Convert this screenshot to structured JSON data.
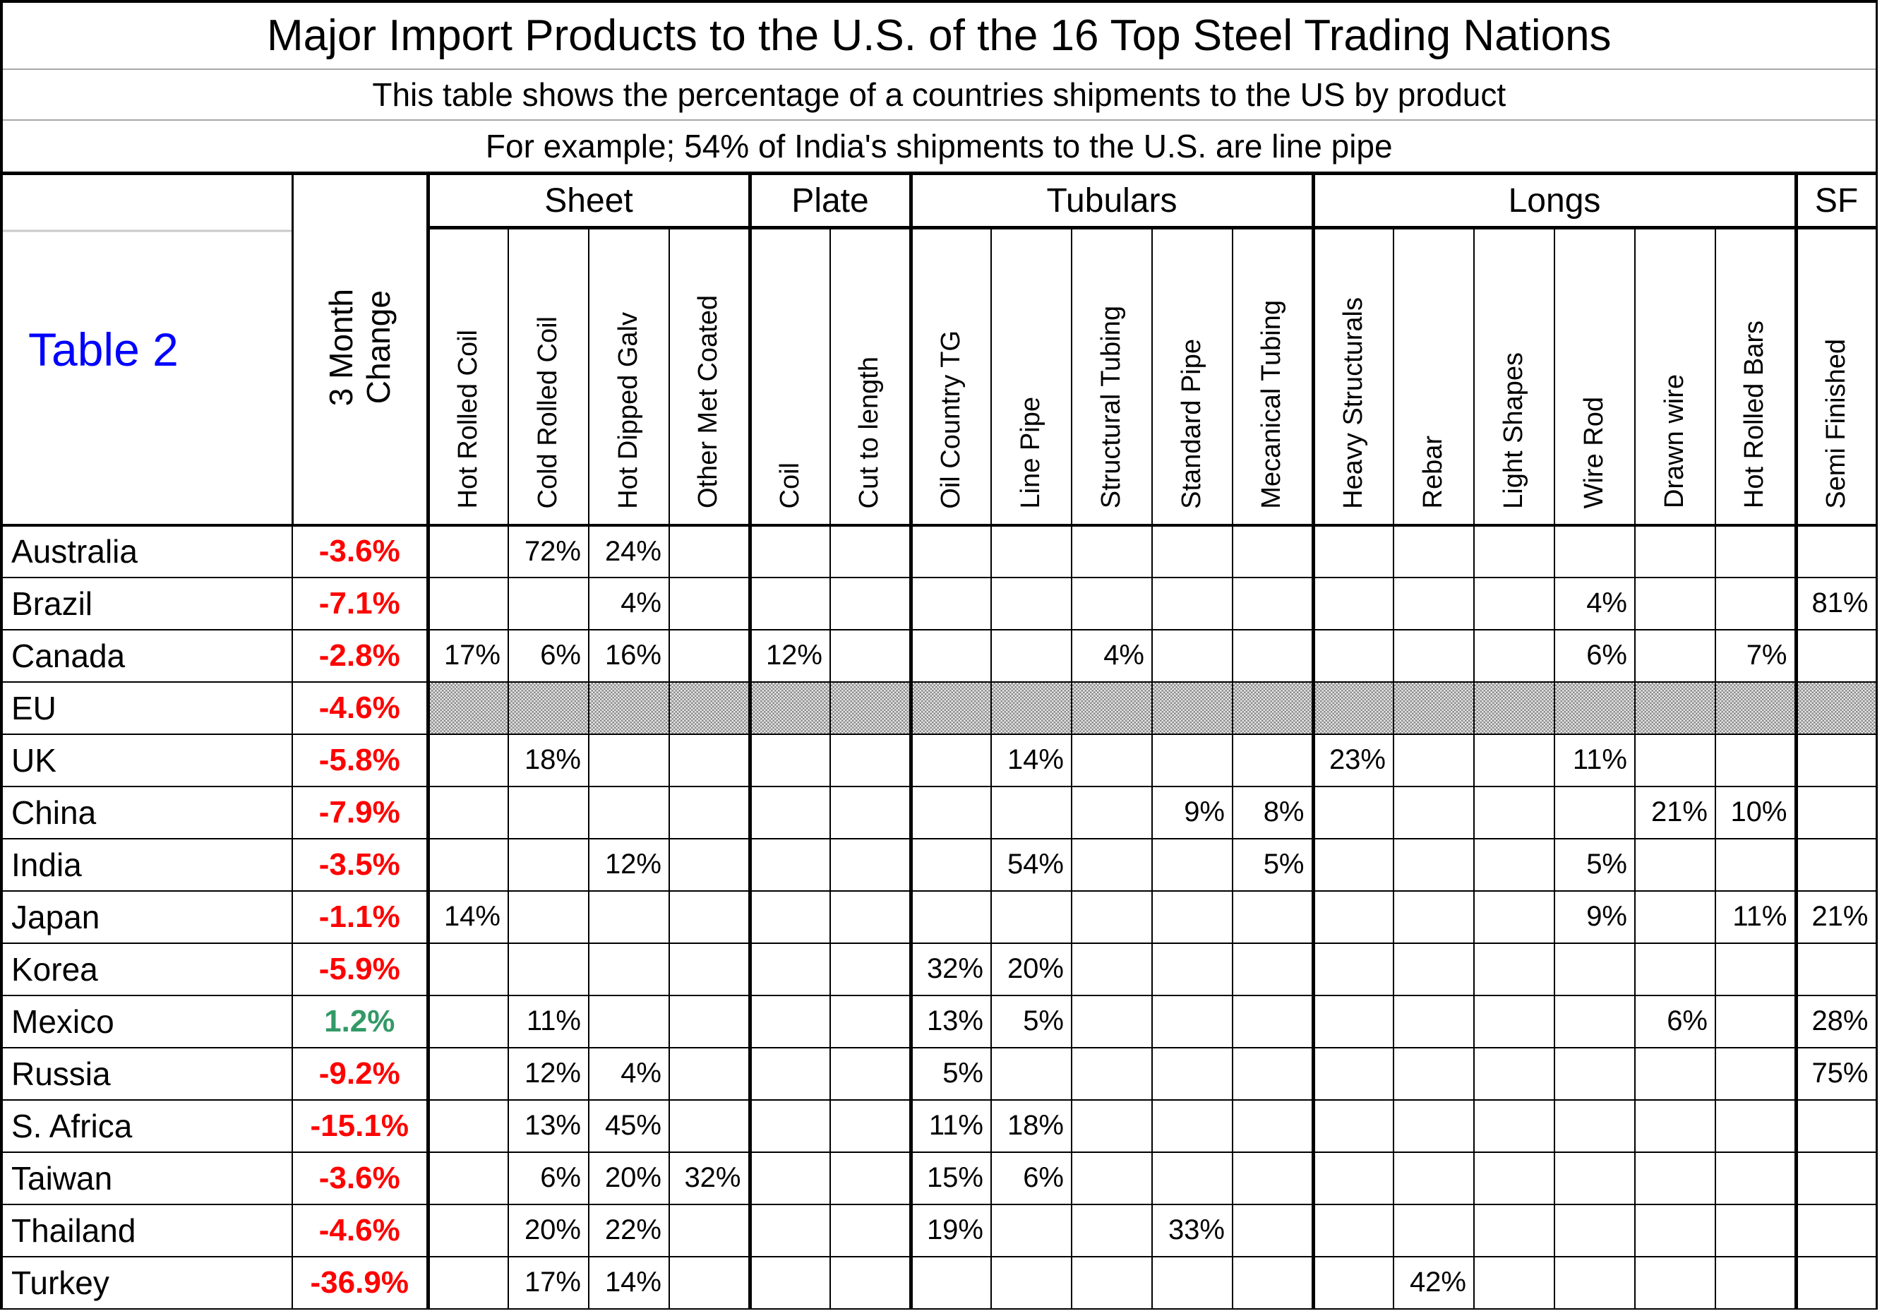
{
  "colors": {
    "negative_change": "#ff0000",
    "positive_change": "#339966",
    "table_label_blue": "#0000ff",
    "grid_line": "#000000",
    "hatch_dark": "#8c8c8c",
    "hatch_light": "#e6e6e6",
    "title_separator": "#a8a8a8"
  },
  "chart_data": {
    "type": "table",
    "title": "Major Import Products to the U.S. of the 16 Top Steel Trading Nations",
    "subtitle1": "This table shows the percentage of a countries shipments to the US by product",
    "subtitle2": "For example; 54% of India's shipments to the U.S. are line pipe",
    "table_label": "Table 2",
    "change_header_line1": "3 Month",
    "change_header_line2": "Change",
    "column_groups": [
      {
        "label": "Sheet",
        "span": 4
      },
      {
        "label": "Plate",
        "span": 2
      },
      {
        "label": "Tubulars",
        "span": 5
      },
      {
        "label": "Longs",
        "span": 6
      },
      {
        "label": "SF",
        "span": 1
      }
    ],
    "columns": [
      "Hot Rolled Coil",
      "Cold Rolled Coil",
      "Hot Dipped Galv",
      "Other Met Coated",
      "Coil",
      "Cut to length",
      "Oil Country TG",
      "Line Pipe",
      "Structural Tubing",
      "Standard Pipe",
      "Mecanical Tubing",
      "Heavy Structurals",
      "Rebar",
      "Light Shapes",
      "Wire Rod",
      "Drawn wire",
      "Hot Rolled Bars",
      "Semi Finished"
    ],
    "rows": [
      {
        "country": "Australia",
        "change": "-3.6%",
        "trend": "negative",
        "hatched": false,
        "values": [
          "",
          "72%",
          "24%",
          "",
          "",
          "",
          "",
          "",
          "",
          "",
          "",
          "",
          "",
          "",
          "",
          "",
          "",
          ""
        ]
      },
      {
        "country": "Brazil",
        "change": "-7.1%",
        "trend": "negative",
        "hatched": false,
        "values": [
          "",
          "",
          "4%",
          "",
          "",
          "",
          "",
          "",
          "",
          "",
          "",
          "",
          "",
          "",
          "4%",
          "",
          "",
          "81%"
        ]
      },
      {
        "country": "Canada",
        "change": "-2.8%",
        "trend": "negative",
        "hatched": false,
        "values": [
          "17%",
          "6%",
          "16%",
          "",
          "12%",
          "",
          "",
          "",
          "4%",
          "",
          "",
          "",
          "",
          "",
          "6%",
          "",
          "7%",
          ""
        ]
      },
      {
        "country": "EU",
        "change": "-4.6%",
        "trend": "negative",
        "hatched": true,
        "values": [
          "",
          "",
          "",
          "",
          "",
          "",
          "",
          "",
          "",
          "",
          "",
          "",
          "",
          "",
          "",
          "",
          "",
          ""
        ]
      },
      {
        "country": "UK",
        "change": "-5.8%",
        "trend": "negative",
        "hatched": false,
        "values": [
          "",
          "18%",
          "",
          "",
          "",
          "",
          "",
          "14%",
          "",
          "",
          "",
          "23%",
          "",
          "",
          "11%",
          "",
          "",
          ""
        ]
      },
      {
        "country": "China",
        "change": "-7.9%",
        "trend": "negative",
        "hatched": false,
        "values": [
          "",
          "",
          "",
          "",
          "",
          "",
          "",
          "",
          "",
          "9%",
          "8%",
          "",
          "",
          "",
          "",
          "21%",
          "10%",
          ""
        ]
      },
      {
        "country": "India",
        "change": "-3.5%",
        "trend": "negative",
        "hatched": false,
        "values": [
          "",
          "",
          "12%",
          "",
          "",
          "",
          "",
          "54%",
          "",
          "",
          "5%",
          "",
          "",
          "",
          "5%",
          "",
          "",
          ""
        ]
      },
      {
        "country": "Japan",
        "change": "-1.1%",
        "trend": "negative",
        "hatched": false,
        "values": [
          "14%",
          "",
          "",
          "",
          "",
          "",
          "",
          "",
          "",
          "",
          "",
          "",
          "",
          "",
          "9%",
          "",
          "11%",
          "21%"
        ]
      },
      {
        "country": "Korea",
        "change": "-5.9%",
        "trend": "negative",
        "hatched": false,
        "values": [
          "",
          "",
          "",
          "",
          "",
          "",
          "32%",
          "20%",
          "",
          "",
          "",
          "",
          "",
          "",
          "",
          "",
          "",
          ""
        ]
      },
      {
        "country": "Mexico",
        "change": "1.2%",
        "trend": "positive",
        "hatched": false,
        "values": [
          "",
          "11%",
          "",
          "",
          "",
          "",
          "13%",
          "5%",
          "",
          "",
          "",
          "",
          "",
          "",
          "",
          "6%",
          "",
          "28%"
        ]
      },
      {
        "country": "Russia",
        "change": "-9.2%",
        "trend": "negative",
        "hatched": false,
        "values": [
          "",
          "12%",
          "4%",
          "",
          "",
          "",
          "5%",
          "",
          "",
          "",
          "",
          "",
          "",
          "",
          "",
          "",
          "",
          "75%"
        ]
      },
      {
        "country": "S. Africa",
        "change": "-15.1%",
        "trend": "negative",
        "hatched": false,
        "values": [
          "",
          "13%",
          "45%",
          "",
          "",
          "",
          "11%",
          "18%",
          "",
          "",
          "",
          "",
          "",
          "",
          "",
          "",
          "",
          ""
        ]
      },
      {
        "country": "Taiwan",
        "change": "-3.6%",
        "trend": "negative",
        "hatched": false,
        "values": [
          "",
          "6%",
          "20%",
          "32%",
          "",
          "",
          "15%",
          "6%",
          "",
          "",
          "",
          "",
          "",
          "",
          "",
          "",
          "",
          ""
        ]
      },
      {
        "country": "Thailand",
        "change": "-4.6%",
        "trend": "negative",
        "hatched": false,
        "values": [
          "",
          "20%",
          "22%",
          "",
          "",
          "",
          "19%",
          "",
          "",
          "33%",
          "",
          "",
          "",
          "",
          "",
          "",
          "",
          ""
        ]
      },
      {
        "country": "Turkey",
        "change": "-36.9%",
        "trend": "negative",
        "hatched": false,
        "values": [
          "",
          "17%",
          "14%",
          "",
          "",
          "",
          "",
          "",
          "",
          "",
          "",
          "",
          "42%",
          "",
          "",
          "",
          "",
          ""
        ]
      }
    ]
  }
}
